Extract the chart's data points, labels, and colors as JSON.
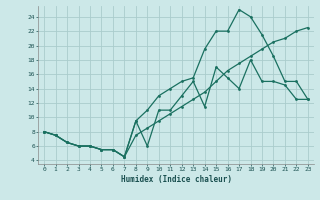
{
  "background_color": "#cce8e8",
  "grid_color": "#aacccc",
  "line_color": "#1a7060",
  "xlabel": "Humidex (Indice chaleur)",
  "xlim": [
    -0.5,
    23.5
  ],
  "ylim": [
    3.5,
    25.5
  ],
  "xticks": [
    0,
    1,
    2,
    3,
    4,
    5,
    6,
    7,
    8,
    9,
    10,
    11,
    12,
    13,
    14,
    15,
    16,
    17,
    18,
    19,
    20,
    21,
    22,
    23
  ],
  "yticks": [
    4,
    6,
    8,
    10,
    12,
    14,
    16,
    18,
    20,
    22,
    24
  ],
  "line1_x": [
    0,
    1,
    2,
    3,
    4,
    5,
    6,
    7,
    8,
    9,
    10,
    11,
    12,
    13,
    14,
    15,
    16,
    17,
    18,
    19,
    20,
    21,
    22,
    23
  ],
  "line1_y": [
    8,
    7.5,
    6.5,
    6,
    6,
    5.5,
    5.5,
    4.5,
    9.5,
    6,
    11,
    11,
    13,
    15,
    11.5,
    17,
    15.5,
    14,
    18,
    15,
    15,
    14.5,
    12.5,
    12.5
  ],
  "line2_x": [
    0,
    1,
    2,
    3,
    4,
    5,
    6,
    7,
    8,
    9,
    10,
    11,
    12,
    13,
    14,
    15,
    16,
    17,
    18,
    19,
    20,
    21,
    22,
    23
  ],
  "line2_y": [
    8,
    7.5,
    6.5,
    6,
    6,
    5.5,
    5.5,
    4.5,
    9.5,
    11,
    13,
    14,
    15,
    15.5,
    19.5,
    22,
    22,
    25,
    24,
    21.5,
    18.5,
    15,
    15,
    12.5
  ],
  "line3_x": [
    0,
    1,
    2,
    3,
    4,
    5,
    6,
    7,
    8,
    9,
    10,
    11,
    12,
    13,
    14,
    15,
    16,
    17,
    18,
    19,
    20,
    21,
    22,
    23
  ],
  "line3_y": [
    8,
    7.5,
    6.5,
    6,
    6,
    5.5,
    5.5,
    4.5,
    7.5,
    8.5,
    9.5,
    10.5,
    11.5,
    12.5,
    13.5,
    15,
    16.5,
    17.5,
    18.5,
    19.5,
    20.5,
    21,
    22,
    22.5
  ]
}
